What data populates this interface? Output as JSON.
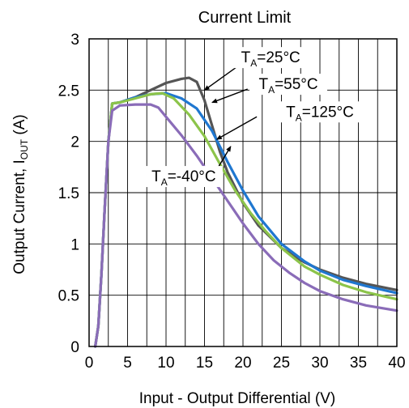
{
  "chart_data": {
    "type": "line",
    "title": "Current Limit",
    "xlabel": "Input - Output Differential  (V)",
    "ylabel": "Output Current, I",
    "ylabel_sub": "OUT",
    "ylabel_unit": " (A)",
    "xlim": [
      0,
      40
    ],
    "ylim": [
      0,
      3
    ],
    "x_ticks": [
      0,
      5,
      10,
      15,
      20,
      25,
      30,
      35,
      40
    ],
    "y_ticks": [
      0,
      0.5,
      1,
      1.5,
      2,
      2.5,
      3
    ],
    "y_tick_labels": [
      "0",
      "0.5",
      "1",
      "1.5",
      "2",
      "2.5",
      "3"
    ],
    "grid": true,
    "series": [
      {
        "name": "TA=25°C",
        "label_main": "T",
        "label_sub": "A",
        "label_rest": "=25°C",
        "color": "#555555",
        "points": [
          [
            0.8,
            0
          ],
          [
            1.2,
            0.2
          ],
          [
            1.6,
            0.7
          ],
          [
            2,
            1.3
          ],
          [
            2.5,
            2.0
          ],
          [
            3,
            2.37
          ],
          [
            4,
            2.38
          ],
          [
            6,
            2.43
          ],
          [
            8,
            2.5
          ],
          [
            10,
            2.57
          ],
          [
            12,
            2.61
          ],
          [
            13,
            2.62
          ],
          [
            14,
            2.58
          ],
          [
            15,
            2.4
          ],
          [
            16,
            2.15
          ],
          [
            17,
            1.9
          ],
          [
            18,
            1.7
          ],
          [
            20,
            1.4
          ],
          [
            22,
            1.18
          ],
          [
            25,
            0.96
          ],
          [
            28,
            0.82
          ],
          [
            30,
            0.75
          ],
          [
            33,
            0.67
          ],
          [
            36,
            0.61
          ],
          [
            40,
            0.55
          ]
        ]
      },
      {
        "name": "TA=55°C",
        "label_main": "T",
        "label_sub": "A",
        "label_rest": "=55°C",
        "color": "#1f77d0",
        "points": [
          [
            0.8,
            0
          ],
          [
            1.2,
            0.2
          ],
          [
            1.6,
            0.7
          ],
          [
            2,
            1.3
          ],
          [
            2.5,
            2.0
          ],
          [
            3,
            2.37
          ],
          [
            4,
            2.38
          ],
          [
            6,
            2.43
          ],
          [
            8,
            2.46
          ],
          [
            10,
            2.47
          ],
          [
            12,
            2.42
          ],
          [
            14,
            2.32
          ],
          [
            16,
            2.1
          ],
          [
            18,
            1.8
          ],
          [
            20,
            1.52
          ],
          [
            22,
            1.27
          ],
          [
            25,
            1.0
          ],
          [
            28,
            0.83
          ],
          [
            30,
            0.74
          ],
          [
            33,
            0.65
          ],
          [
            36,
            0.59
          ],
          [
            40,
            0.52
          ]
        ]
      },
      {
        "name": "TA=125°C",
        "label_main": "T",
        "label_sub": "A",
        "label_rest": "=125°C",
        "color": "#8cc44a",
        "points": [
          [
            0.8,
            0
          ],
          [
            1.2,
            0.2
          ],
          [
            1.6,
            0.7
          ],
          [
            2,
            1.3
          ],
          [
            2.5,
            2.0
          ],
          [
            3,
            2.37
          ],
          [
            4,
            2.38
          ],
          [
            6,
            2.42
          ],
          [
            8,
            2.46
          ],
          [
            9.5,
            2.47
          ],
          [
            11,
            2.42
          ],
          [
            13,
            2.26
          ],
          [
            15,
            2.05
          ],
          [
            17,
            1.78
          ],
          [
            19,
            1.52
          ],
          [
            21,
            1.3
          ],
          [
            23,
            1.12
          ],
          [
            25,
            0.96
          ],
          [
            28,
            0.78
          ],
          [
            30,
            0.7
          ],
          [
            33,
            0.6
          ],
          [
            36,
            0.53
          ],
          [
            40,
            0.46
          ]
        ]
      },
      {
        "name": "TA=-40°C",
        "label_main": "T",
        "label_sub": "A",
        "label_rest": "=-40°C",
        "color": "#8a6cb8",
        "points": [
          [
            0.8,
            0
          ],
          [
            1.2,
            0.2
          ],
          [
            1.6,
            0.7
          ],
          [
            2,
            1.3
          ],
          [
            2.5,
            2.0
          ],
          [
            3,
            2.3
          ],
          [
            4,
            2.35
          ],
          [
            6,
            2.36
          ],
          [
            8,
            2.36
          ],
          [
            9,
            2.33
          ],
          [
            10,
            2.24
          ],
          [
            12,
            2.06
          ],
          [
            14,
            1.86
          ],
          [
            16,
            1.64
          ],
          [
            18,
            1.42
          ],
          [
            20,
            1.2
          ],
          [
            22,
            1.0
          ],
          [
            24,
            0.84
          ],
          [
            26,
            0.72
          ],
          [
            28,
            0.62
          ],
          [
            30,
            0.54
          ],
          [
            33,
            0.46
          ],
          [
            36,
            0.4
          ],
          [
            40,
            0.35
          ]
        ]
      }
    ]
  }
}
